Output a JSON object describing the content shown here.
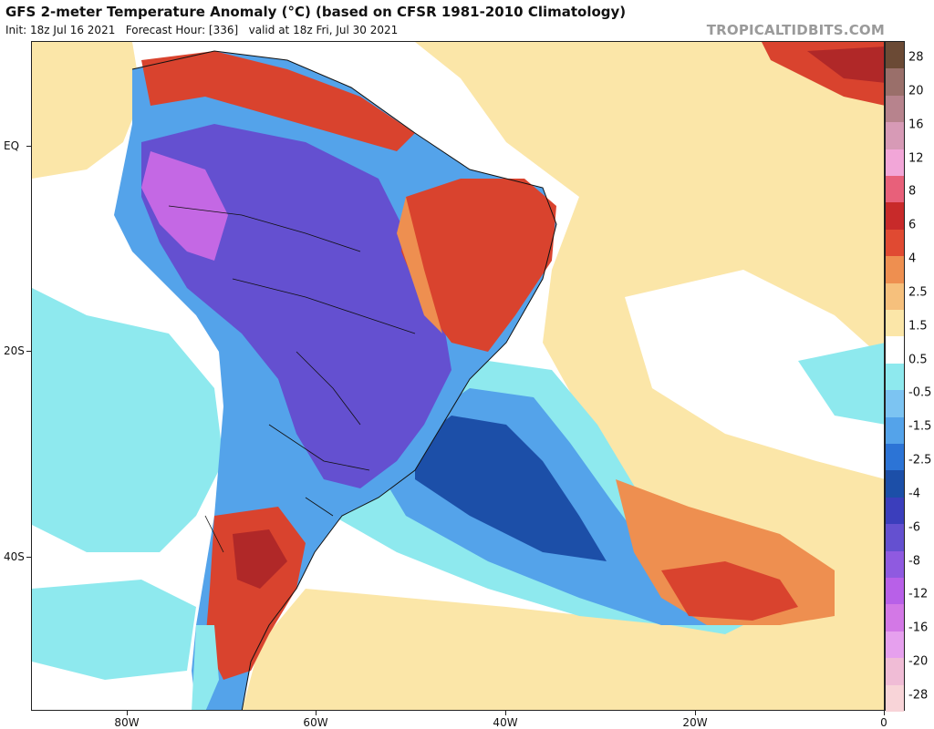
{
  "header": {
    "title": "GFS 2-meter Temperature Anomaly (°C) (based on CFSR 1981-2010 Climatology)",
    "subtitle": "Init: 18z Jul 16 2021   Forecast Hour: [336]   valid at 18z Fri, Jul 30 2021",
    "watermark": "TROPICALTIDBITS.COM"
  },
  "map": {
    "lat_labels": [
      "EQ",
      "20S",
      "40S"
    ],
    "lon_labels": [
      "80W",
      "60W",
      "40W",
      "20W",
      "0"
    ]
  },
  "colorbar": {
    "labels": [
      "28",
      "20",
      "16",
      "12",
      "8",
      "6",
      "4",
      "2.5",
      "1.5",
      "0.5",
      "-0.5",
      "-1.5",
      "-2.5",
      "-4",
      "-6",
      "-8",
      "-12",
      "-16",
      "-20",
      "-28"
    ],
    "colors": [
      "#6b4a35",
      "#9a6f6a",
      "#b7838d",
      "#d79ab6",
      "#f2a6d8",
      "#e8607a",
      "#c82a2a",
      "#e04a32",
      "#ee8f50",
      "#f6c07c",
      "#fbe6a8",
      "#ffffff",
      "#8ee9ee",
      "#7cc4f2",
      "#54a3ea",
      "#2c74d6",
      "#1c4fa8",
      "#3b3ebc",
      "#6450d0",
      "#8f5ae0",
      "#b860e8",
      "#d378e6",
      "#e6a0ee",
      "#f0bcd6",
      "#f8d4d8"
    ],
    "palette": {
      "ocean_warm": "#fbe6a8",
      "ocean_neutral": "#ffffff",
      "cold_light": "#8ee9ee",
      "cold_mid": "#54a3ea",
      "cold_deep": "#1c4fa8",
      "very_cold": "#6450d0",
      "extreme_cold": "#c468e4",
      "warm_mid": "#ee8f50",
      "warm_strong": "#d9432e",
      "warm_extreme": "#b02828"
    }
  }
}
